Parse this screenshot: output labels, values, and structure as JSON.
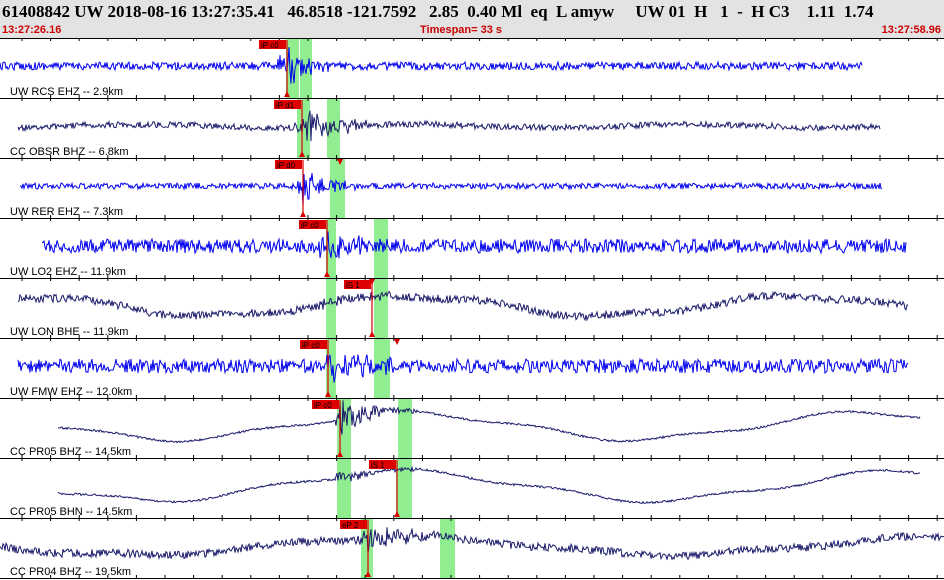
{
  "header": {
    "event_line": "61408842 UW 2018-08-16 13:27:35.41   46.8518 -121.7592   2.85  0.40 Ml  eq  L amyw     UW 01  H   1  -  H C3    1.11  1.74",
    "time_start": "13:27:26.16",
    "timespan": "Timespan=  33 s",
    "time_end": "13:27:58.96",
    "color": "#cc0000"
  },
  "colors": {
    "trace_blue": "#0000ee",
    "trace_navy": "#1a1a6b",
    "pick_red": "#dd0000",
    "window_green": "#90ee90",
    "grid": "#000000"
  },
  "traces": [
    {
      "label": "UW RCS EHZ -- 2.9km",
      "pick_label": "iP c0",
      "color": "blue",
      "picks_count": 1
    },
    {
      "label": "CC OBSR BHZ -- 6.8km",
      "pick_label": "iP d1",
      "color": "navy",
      "picks_count": 1
    },
    {
      "label": "UW RER EHZ -- 7.3km",
      "pick_label": "iP d0",
      "color": "blue",
      "picks_count": 1
    },
    {
      "label": "UW LO2 EHZ -- 11.9km",
      "pick_label": "iP c0",
      "color": "blue",
      "picks_count": 1
    },
    {
      "label": "UW LON BHE -- 11.9km",
      "pick_label": "iS 1",
      "color": "navy",
      "picks_count": 1
    },
    {
      "label": "UW FMW EHZ -- 12.0km",
      "pick_label": "iP c0",
      "color": "blue",
      "picks_count": 1
    },
    {
      "label": "CC PR05 BHZ -- 14.5km",
      "pick_label": "iP c0",
      "color": "navy",
      "picks_count": 1
    },
    {
      "label": "CC PR05 BHN -- 14.5km",
      "pick_label": "iS 1",
      "color": "navy",
      "picks_count": 1
    },
    {
      "label": "CC PR04 BHZ -- 19.5km",
      "pick_label": "eP 2",
      "color": "navy",
      "picks_count": 1
    }
  ]
}
